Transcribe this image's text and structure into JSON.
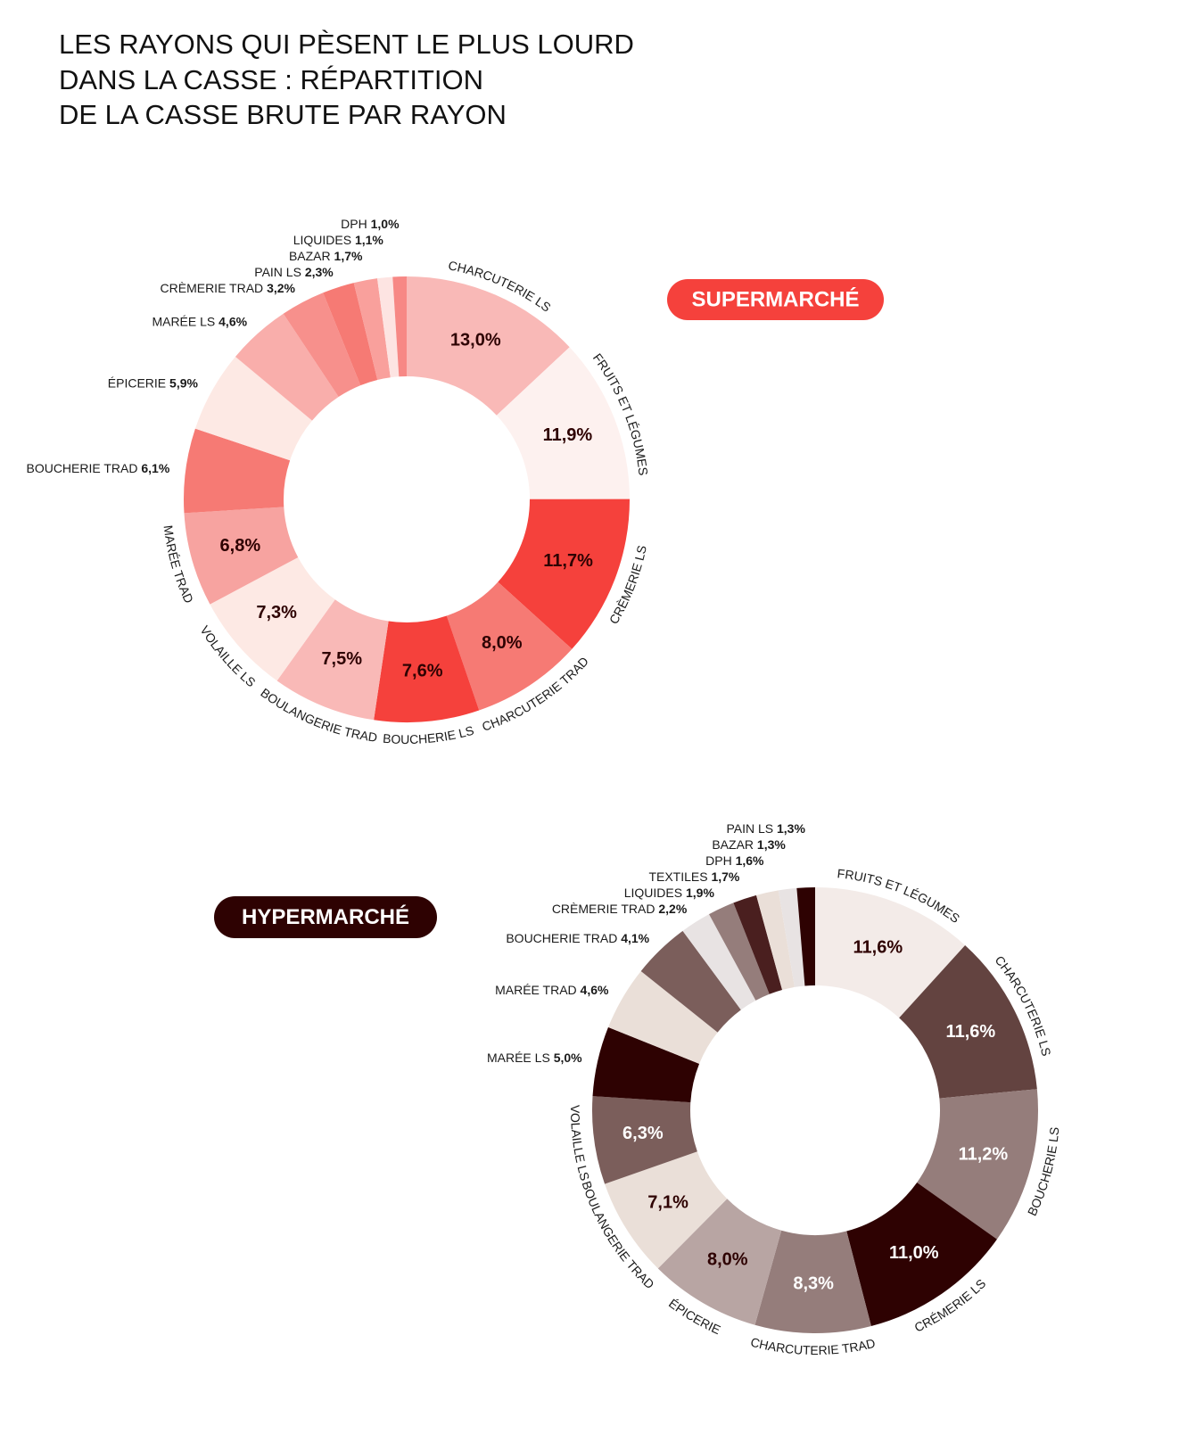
{
  "title": [
    "LES RAYONS QUI PÈSENT LE PLUS LOURD",
    "DANS LA CASSE : RÉPARTITION",
    "DE LA CASSE BRUTE PAR RAYON"
  ],
  "chart_data": [
    {
      "type": "donut",
      "title": "SUPERMARCHÉ",
      "title_color": "#f5413c",
      "categories": [
        "CHARCUTERIE LS",
        "FRUITS ET LÉGUMES",
        "CRÈMERIE LS",
        "CHARCUTERIE TRAD",
        "BOUCHERIE LS",
        "BOULANGERIE TRAD",
        "VOLAILLE LS",
        "MARÉE TRAD",
        "BOUCHERIE TRAD",
        "ÉPICERIE",
        "MARÉE LS",
        "CRÈMERIE TRAD",
        "PAIN LS",
        "BAZAR",
        "LIQUIDES",
        "DPH"
      ],
      "values": [
        13.0,
        11.9,
        11.7,
        8.0,
        7.6,
        7.5,
        7.3,
        6.8,
        6.1,
        5.9,
        4.6,
        3.2,
        2.3,
        1.7,
        1.1,
        1.0
      ],
      "value_labels": [
        "13,0%",
        "11,9%",
        "11,7%",
        "8,0%",
        "7,6%",
        "7,5%",
        "7,3%",
        "6,8%",
        "6,1%",
        "5,9%",
        "4,6%",
        "3,2%",
        "2,3%",
        "1,7%",
        "1,1%",
        "1,0%"
      ],
      "colors": [
        "#f9b9b7",
        "#fdf1ef",
        "#f5413c",
        "#f67a74",
        "#f5413c",
        "#f9b9b7",
        "#fde9e4",
        "#f7a3a0",
        "#f67a74",
        "#fde9e4",
        "#f9aeab",
        "#f7908c",
        "#f67a74",
        "#f9a09c",
        "#fde4e2",
        "#f78885"
      ]
    },
    {
      "type": "donut",
      "title": "HYPERMARCHÉ",
      "title_color": "#2e0202",
      "categories": [
        "FRUITS ET LÉGUMES",
        "CHARCUTERIE LS",
        "BOUCHERIE LS",
        "CRÉMERIE LS",
        "CHARCUTERIE TRAD",
        "ÉPICERIE",
        "BOULANGERIE TRAD",
        "VOLAILLE LS",
        "MARÉE LS",
        "MARÉE TRAD",
        "BOUCHERIE TRAD",
        "CRÈMERIE TRAD",
        "LIQUIDES",
        "TEXTILES",
        "DPH",
        "BAZAR",
        "PAIN LS"
      ],
      "values": [
        11.6,
        11.6,
        11.2,
        11.0,
        8.3,
        8.0,
        7.1,
        6.3,
        5.0,
        4.6,
        4.1,
        2.2,
        1.9,
        1.7,
        1.6,
        1.3,
        1.3
      ],
      "value_labels": [
        "11,6%",
        "11,6%",
        "11,2%",
        "11,0%",
        "8,3%",
        "8,0%",
        "7,1%",
        "6,3%",
        "5,0%",
        "4,6%",
        "4,1%",
        "2,2%",
        "1,9%",
        "1,7%",
        "1,6%",
        "1,3%",
        "1,3%"
      ],
      "colors": [
        "#f3ebe8",
        "#634340",
        "#957d7b",
        "#2e0202",
        "#957d7b",
        "#b8a5a3",
        "#eadfd8",
        "#7b5e5b",
        "#2e0202",
        "#eadfd8",
        "#7b5e5b",
        "#e8e3e3",
        "#957d7b",
        "#4a1f1f",
        "#eadfd8",
        "#e8e3e3",
        "#2e0202"
      ]
    }
  ]
}
